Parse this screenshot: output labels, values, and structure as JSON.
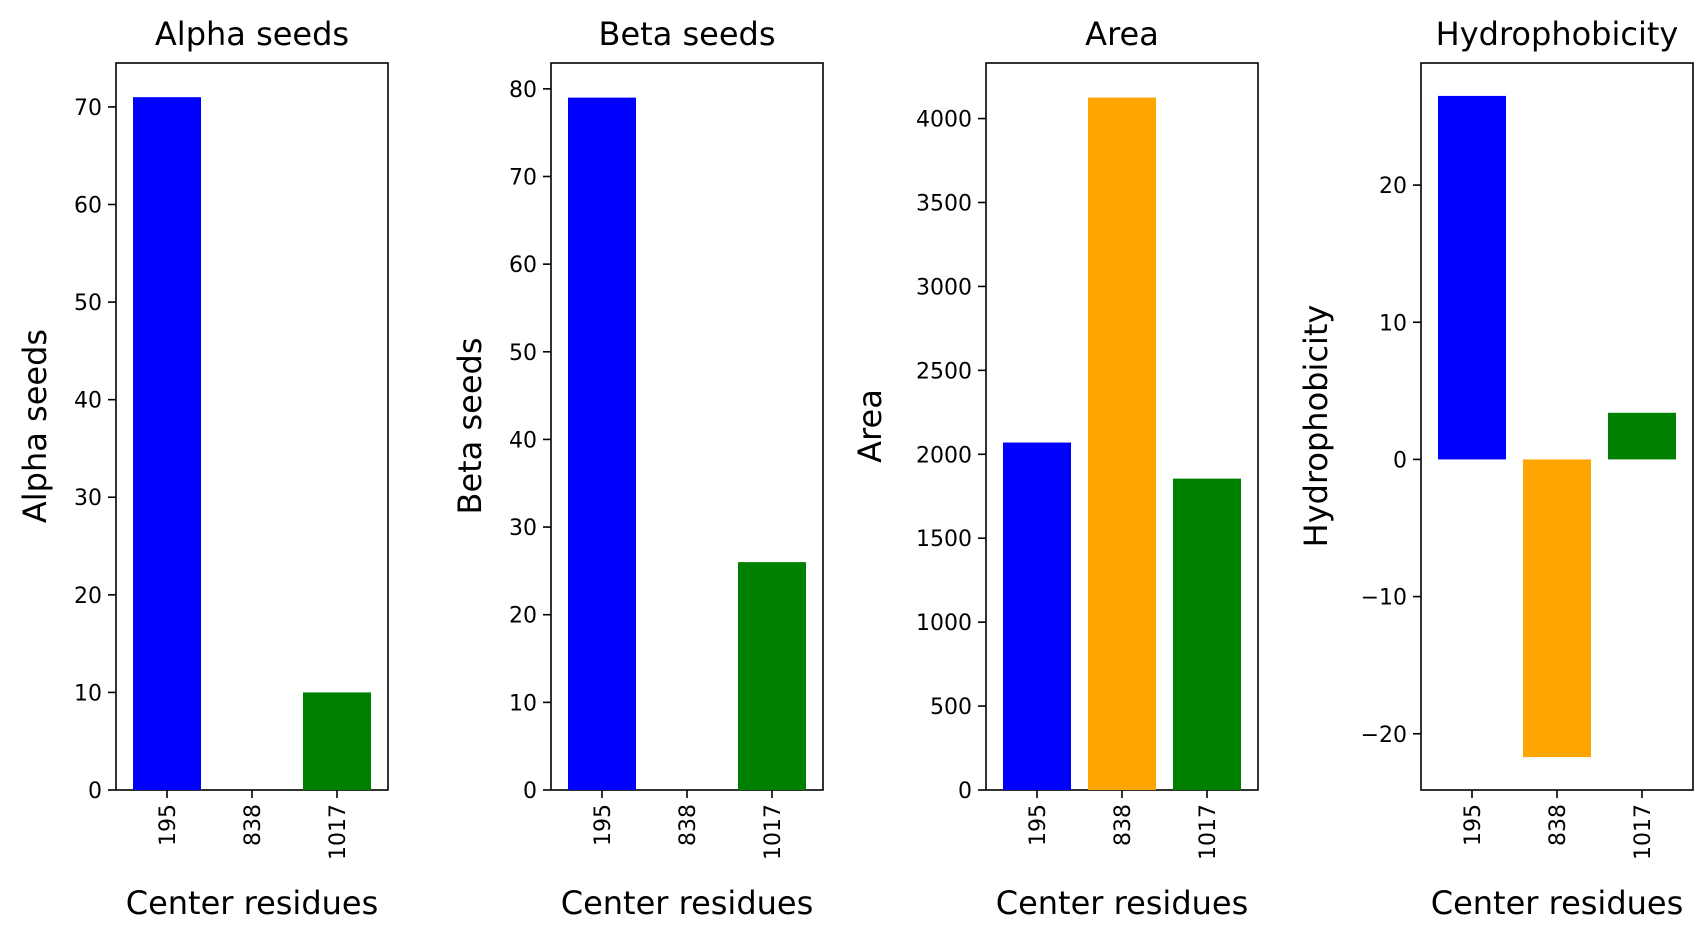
{
  "chart_data": [
    {
      "type": "bar",
      "title": "Alpha seeds",
      "xlabel": "Center residues",
      "ylabel": "Alpha seeds",
      "categories": [
        "195",
        "838",
        "1017"
      ],
      "values": [
        71,
        0,
        10
      ],
      "colors": [
        "#0000ff",
        "#ffa500",
        "#008000"
      ],
      "ylim": [
        0,
        74.5
      ],
      "yticks": [
        0,
        10,
        20,
        30,
        40,
        50,
        60,
        70
      ],
      "ytick_labels": [
        "0",
        "10",
        "20",
        "30",
        "40",
        "50",
        "60",
        "70"
      ],
      "grid": false
    },
    {
      "type": "bar",
      "title": "Beta seeds",
      "xlabel": "Center residues",
      "ylabel": "Beta seeds",
      "categories": [
        "195",
        "838",
        "1017"
      ],
      "values": [
        79,
        0,
        26
      ],
      "colors": [
        "#0000ff",
        "#ffa500",
        "#008000"
      ],
      "ylim": [
        0,
        82.95
      ],
      "yticks": [
        0,
        10,
        20,
        30,
        40,
        50,
        60,
        70,
        80
      ],
      "ytick_labels": [
        "0",
        "10",
        "20",
        "30",
        "40",
        "50",
        "60",
        "70",
        "80"
      ],
      "grid": false
    },
    {
      "type": "bar",
      "title": "Area",
      "xlabel": "Center residues",
      "ylabel": "Area",
      "categories": [
        "195",
        "838",
        "1017"
      ],
      "values": [
        2070,
        4125,
        1855
      ],
      "colors": [
        "#0000ff",
        "#ffa500",
        "#008000"
      ],
      "ylim": [
        0,
        4331
      ],
      "yticks": [
        0,
        500,
        1000,
        1500,
        2000,
        2500,
        3000,
        3500,
        4000
      ],
      "ytick_labels": [
        "0",
        "500",
        "1000",
        "1500",
        "2000",
        "2500",
        "3000",
        "3500",
        "4000"
      ],
      "grid": false
    },
    {
      "type": "bar",
      "title": "Hydrophobicity",
      "xlabel": "Center residues",
      "ylabel": "Hydrophobicity",
      "categories": [
        "195",
        "838",
        "1017"
      ],
      "values": [
        26.5,
        -21.7,
        3.4
      ],
      "colors": [
        "#0000ff",
        "#ffa500",
        "#008000"
      ],
      "ylim": [
        -24.1,
        28.9
      ],
      "yticks": [
        -20,
        -10,
        0,
        10,
        20
      ],
      "ytick_labels": [
        "−20",
        "−10",
        "0",
        "10",
        "20"
      ],
      "grid": false
    }
  ]
}
